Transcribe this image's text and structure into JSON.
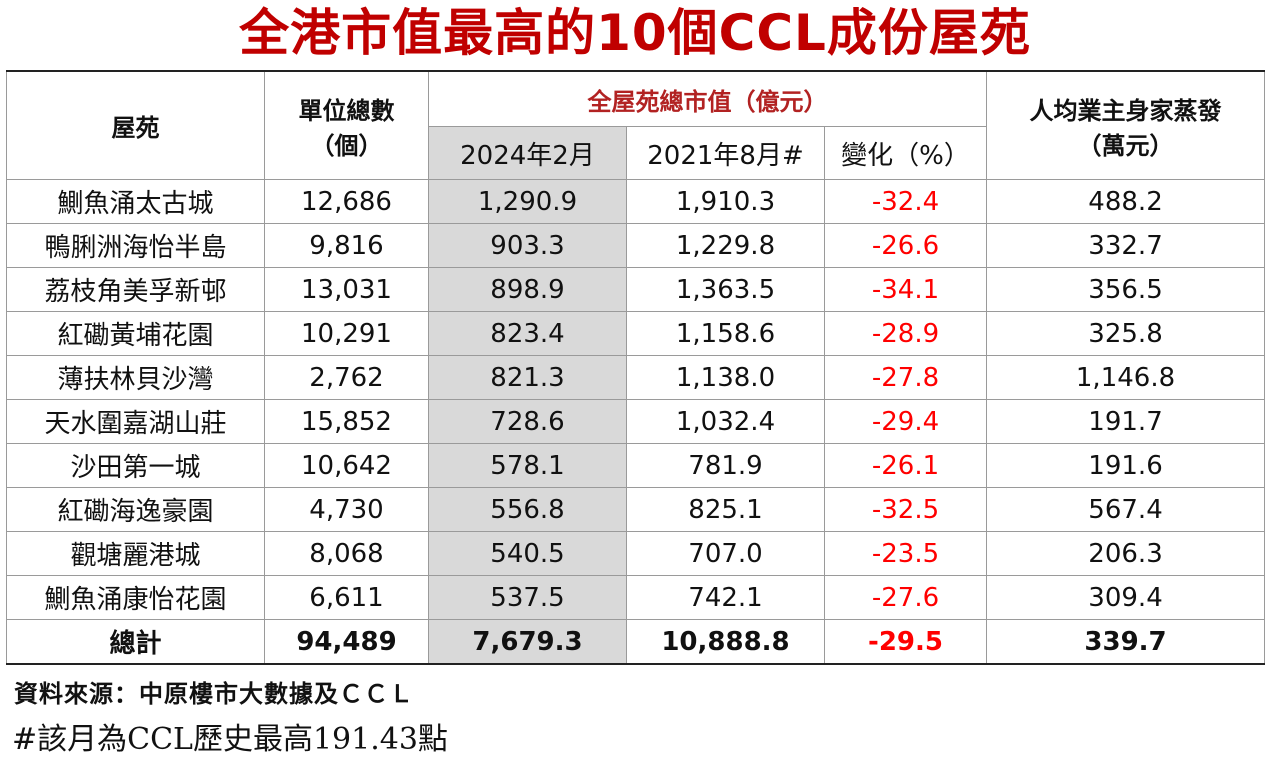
{
  "title": "全港市值最高的10個CCL成份屋苑",
  "headers": {
    "estate": "屋苑",
    "units": "單位總數",
    "units_unit": "（個）",
    "market_value": "全屋苑總市值（億元）",
    "col_2024": "2024年2月",
    "col_2021": "2021年8月#",
    "col_change": "變化（%）",
    "per_owner": "人均業主身家蒸發",
    "per_owner_unit": "（萬元）"
  },
  "rows": [
    {
      "estate": "鰂魚涌太古城",
      "units": "12,686",
      "v2024": "1,290.9",
      "v2021": "1,910.3",
      "change": "-32.4",
      "per_owner": "488.2"
    },
    {
      "estate": "鴨脷洲海怡半島",
      "units": "9,816",
      "v2024": "903.3",
      "v2021": "1,229.8",
      "change": "-26.6",
      "per_owner": "332.7"
    },
    {
      "estate": "荔枝角美孚新邨",
      "units": "13,031",
      "v2024": "898.9",
      "v2021": "1,363.5",
      "change": "-34.1",
      "per_owner": "356.5"
    },
    {
      "estate": "紅磡黃埔花園",
      "units": "10,291",
      "v2024": "823.4",
      "v2021": "1,158.6",
      "change": "-28.9",
      "per_owner": "325.8"
    },
    {
      "estate": "薄扶林貝沙灣",
      "units": "2,762",
      "v2024": "821.3",
      "v2021": "1,138.0",
      "change": "-27.8",
      "per_owner": "1,146.8"
    },
    {
      "estate": "天水圍嘉湖山莊",
      "units": "15,852",
      "v2024": "728.6",
      "v2021": "1,032.4",
      "change": "-29.4",
      "per_owner": "191.7"
    },
    {
      "estate": "沙田第一城",
      "units": "10,642",
      "v2024": "578.1",
      "v2021": "781.9",
      "change": "-26.1",
      "per_owner": "191.6"
    },
    {
      "estate": "紅磡海逸豪園",
      "units": "4,730",
      "v2024": "556.8",
      "v2021": "825.1",
      "change": "-32.5",
      "per_owner": "567.4"
    },
    {
      "estate": "觀塘麗港城",
      "units": "8,068",
      "v2024": "540.5",
      "v2021": "707.0",
      "change": "-23.5",
      "per_owner": "206.3"
    },
    {
      "estate": "鰂魚涌康怡花園",
      "units": "6,611",
      "v2024": "537.5",
      "v2021": "742.1",
      "change": "-27.6",
      "per_owner": "309.4"
    }
  ],
  "total": {
    "estate": "總計",
    "units": "94,489",
    "v2024": "7,679.3",
    "v2021": "10,888.8",
    "change": "-29.5",
    "per_owner": "339.7"
  },
  "source": "資料來源：中原樓市大數據及ＣＣＬ",
  "note": "#該月為CCL歷史最高191.43點",
  "colors": {
    "title": "#c00000",
    "negative": "#ff0000",
    "shade": "#d9d9d9"
  }
}
